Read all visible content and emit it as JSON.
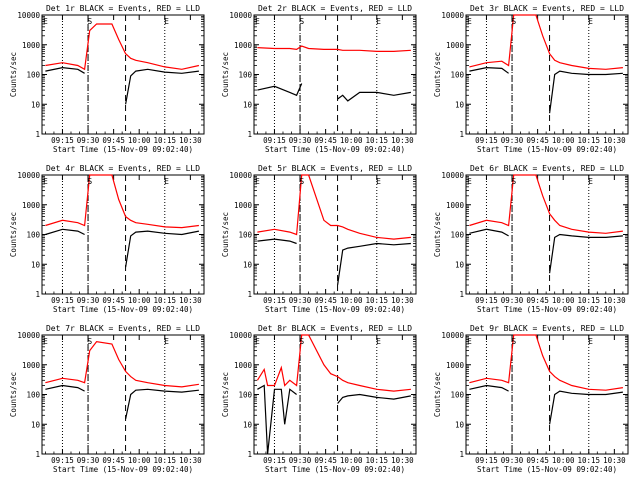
{
  "figure": {
    "x_tick_labels": [
      "09:15",
      "09:30",
      "09:45",
      "10:00",
      "10:15",
      "10:30"
    ],
    "y_tick_labels": [
      "1",
      "10",
      "100",
      "1000",
      "10000"
    ],
    "ylabel": "Counts/sec",
    "xlabel": "Start Time (15-Nov-09 09:02:40)",
    "event_colors": {
      "events": "#000000",
      "lld": "#ff0000"
    },
    "marker_labels": {
      "start": "S",
      "end": "E"
    }
  },
  "chart_data": [
    {
      "type": "line",
      "title": "Det 1r BLACK = Events, RED = LLD",
      "xlabel": "Start Time (15-Nov-09 09:02:40)",
      "ylabel": "Counts/sec",
      "ylim": [
        1,
        10000
      ],
      "y_scale": "log",
      "x": [
        "09:05",
        "09:15",
        "09:24",
        "09:28",
        "09:31",
        "09:35",
        "09:44",
        "09:48",
        "09:52",
        "09:55",
        "09:58",
        "10:05",
        "10:15",
        "10:25",
        "10:35"
      ],
      "dotted_lines": [
        "09:15",
        "09:30",
        "10:15"
      ],
      "dashed_lines": [
        "09:30",
        "09:52"
      ],
      "markers": [
        {
          "label": "E",
          "x": "09:05"
        },
        {
          "label": "S",
          "x": "09:31"
        },
        {
          "label": "E",
          "x": "10:16"
        }
      ],
      "series": [
        {
          "color": "#ff0000",
          "values": [
            200,
            250,
            200,
            150,
            3000,
            5000,
            5000,
            1500,
            500,
            350,
            300,
            250,
            180,
            150,
            200
          ]
        },
        {
          "color": "#000000",
          "values": [
            130,
            170,
            150,
            110,
            null,
            null,
            null,
            null,
            10,
            90,
            130,
            150,
            120,
            110,
            130
          ]
        }
      ]
    },
    {
      "type": "line",
      "title": "Det 2r BLACK = Events, RED = LLD",
      "xlabel": "Start Time (15-Nov-09 09:02:40)",
      "ylabel": "Counts/sec",
      "ylim": [
        1,
        10000
      ],
      "y_scale": "log",
      "x": [
        "09:05",
        "09:15",
        "09:24",
        "09:28",
        "09:31",
        "09:35",
        "09:44",
        "09:48",
        "09:52",
        "09:55",
        "09:58",
        "10:05",
        "10:15",
        "10:25",
        "10:35"
      ],
      "dotted_lines": [
        "09:15",
        "09:30",
        "10:15"
      ],
      "dashed_lines": [
        "09:30",
        "09:52"
      ],
      "markers": [
        {
          "label": "E",
          "x": "09:05"
        },
        {
          "label": "S",
          "x": "09:31"
        },
        {
          "label": "E",
          "x": "10:16"
        }
      ],
      "series": [
        {
          "color": "#ff0000",
          "values": [
            800,
            750,
            750,
            700,
            900,
            750,
            700,
            700,
            700,
            650,
            650,
            650,
            600,
            600,
            650
          ]
        },
        {
          "color": "#000000",
          "values": [
            30,
            40,
            25,
            20,
            50,
            null,
            null,
            null,
            15,
            20,
            13,
            25,
            25,
            20,
            25
          ]
        }
      ]
    },
    {
      "type": "line",
      "title": "Det 3r BLACK = Events, RED = LLD",
      "xlabel": "Start Time (15-Nov-09 09:02:40)",
      "ylabel": "Counts/sec",
      "ylim": [
        1,
        10000
      ],
      "y_scale": "log",
      "x": [
        "09:05",
        "09:15",
        "09:24",
        "09:28",
        "09:31",
        "09:35",
        "09:44",
        "09:48",
        "09:52",
        "09:55",
        "09:58",
        "10:05",
        "10:15",
        "10:25",
        "10:35"
      ],
      "dotted_lines": [
        "09:15",
        "09:30",
        "10:15"
      ],
      "dashed_lines": [
        "09:30",
        "09:52"
      ],
      "markers": [
        {
          "label": "E",
          "x": "09:05"
        },
        {
          "label": "S",
          "x": "09:31"
        },
        {
          "label": "E",
          "x": "10:16"
        }
      ],
      "series": [
        {
          "color": "#ff0000",
          "values": [
            180,
            250,
            280,
            200,
            10000,
            10000,
            10000,
            2000,
            500,
            300,
            250,
            200,
            160,
            150,
            170
          ]
        },
        {
          "color": "#000000",
          "values": [
            130,
            170,
            160,
            110,
            null,
            null,
            null,
            null,
            5,
            100,
            130,
            110,
            100,
            100,
            110
          ]
        }
      ]
    },
    {
      "type": "line",
      "title": "Det 4r BLACK = Events, RED = LLD",
      "xlabel": "Start Time (15-Nov-09 09:02:40)",
      "ylabel": "Counts/sec",
      "ylim": [
        1,
        10000
      ],
      "y_scale": "log",
      "x": [
        "09:05",
        "09:15",
        "09:24",
        "09:28",
        "09:31",
        "09:35",
        "09:44",
        "09:48",
        "09:52",
        "09:55",
        "09:58",
        "10:05",
        "10:15",
        "10:25",
        "10:35"
      ],
      "dotted_lines": [
        "09:15",
        "09:30",
        "10:15"
      ],
      "dashed_lines": [
        "09:30",
        "09:52"
      ],
      "markers": [
        {
          "label": "E",
          "x": "09:05"
        },
        {
          "label": "S",
          "x": "09:31"
        },
        {
          "label": "E",
          "x": "10:16"
        }
      ],
      "series": [
        {
          "color": "#ff0000",
          "values": [
            200,
            300,
            250,
            200,
            10000,
            10000,
            10000,
            1500,
            400,
            300,
            250,
            220,
            180,
            170,
            200
          ]
        },
        {
          "color": "#000000",
          "values": [
            100,
            150,
            130,
            100,
            null,
            null,
            null,
            null,
            8,
            90,
            120,
            130,
            110,
            100,
            130
          ]
        }
      ]
    },
    {
      "type": "line",
      "title": "Det 5r BLACK = Events, RED = LLD",
      "xlabel": "Start Time (15-Nov-09 09:02:40)",
      "ylabel": "Counts/sec",
      "ylim": [
        1,
        10000
      ],
      "y_scale": "log",
      "x": [
        "09:05",
        "09:15",
        "09:24",
        "09:28",
        "09:31",
        "09:35",
        "09:44",
        "09:48",
        "09:52",
        "09:55",
        "09:58",
        "10:05",
        "10:15",
        "10:25",
        "10:35"
      ],
      "dotted_lines": [
        "09:15",
        "09:30",
        "10:15"
      ],
      "dashed_lines": [
        "09:30",
        "09:52"
      ],
      "markers": [
        {
          "label": "E",
          "x": "09:05"
        },
        {
          "label": "S",
          "x": "09:31"
        },
        {
          "label": "E",
          "x": "10:16"
        }
      ],
      "series": [
        {
          "color": "#ff0000",
          "values": [
            120,
            150,
            120,
            100,
            10000,
            10000,
            300,
            200,
            200,
            180,
            150,
            110,
            80,
            70,
            80
          ]
        },
        {
          "color": "#000000",
          "values": [
            60,
            70,
            60,
            50,
            null,
            null,
            null,
            null,
            2,
            30,
            35,
            40,
            50,
            45,
            50
          ]
        }
      ]
    },
    {
      "type": "line",
      "title": "Det 6r BLACK = Events, RED = LLD",
      "xlabel": "Start Time (15-Nov-09 09:02:40)",
      "ylabel": "Counts/sec",
      "ylim": [
        1,
        10000
      ],
      "y_scale": "log",
      "x": [
        "09:05",
        "09:15",
        "09:24",
        "09:28",
        "09:31",
        "09:35",
        "09:44",
        "09:48",
        "09:52",
        "09:55",
        "09:58",
        "10:05",
        "10:15",
        "10:25",
        "10:35"
      ],
      "dotted_lines": [
        "09:15",
        "09:30",
        "10:15"
      ],
      "dashed_lines": [
        "09:30",
        "09:52"
      ],
      "markers": [
        {
          "label": "E",
          "x": "09:05"
        },
        {
          "label": "S",
          "x": "09:31"
        },
        {
          "label": "E",
          "x": "10:16"
        }
      ],
      "series": [
        {
          "color": "#ff0000",
          "values": [
            200,
            300,
            250,
            200,
            10000,
            10000,
            10000,
            2000,
            500,
            300,
            200,
            150,
            120,
            110,
            130
          ]
        },
        {
          "color": "#000000",
          "values": [
            110,
            150,
            120,
            90,
            null,
            null,
            null,
            null,
            5,
            80,
            100,
            90,
            80,
            80,
            90
          ]
        }
      ]
    },
    {
      "type": "line",
      "title": "Det 7r BLACK = Events, RED = LLD",
      "xlabel": "Start Time (15-Nov-09 09:02:40)",
      "ylabel": "Counts/sec",
      "ylim": [
        1,
        10000
      ],
      "y_scale": "log",
      "x": [
        "09:05",
        "09:15",
        "09:24",
        "09:28",
        "09:31",
        "09:35",
        "09:44",
        "09:48",
        "09:52",
        "09:55",
        "09:58",
        "10:05",
        "10:15",
        "10:25",
        "10:35"
      ],
      "dotted_lines": [
        "09:15",
        "09:30",
        "10:15"
      ],
      "dashed_lines": [
        "09:30",
        "09:52"
      ],
      "markers": [
        {
          "label": "E",
          "x": "09:05"
        },
        {
          "label": "S",
          "x": "09:31"
        },
        {
          "label": "E",
          "x": "10:16"
        }
      ],
      "series": [
        {
          "color": "#ff0000",
          "values": [
            250,
            350,
            300,
            250,
            3000,
            6000,
            5000,
            1500,
            600,
            400,
            300,
            250,
            200,
            180,
            220
          ]
        },
        {
          "color": "#000000",
          "values": [
            150,
            200,
            170,
            130,
            null,
            null,
            null,
            null,
            15,
            100,
            140,
            150,
            130,
            120,
            140
          ]
        }
      ]
    },
    {
      "type": "line",
      "title": "Det 8r BLACK = Events, RED = LLD",
      "xlabel": "Start Time (15-Nov-09 09:02:40)",
      "ylabel": "Counts/sec",
      "ylim": [
        1,
        10000
      ],
      "y_scale": "log",
      "x": [
        "09:05",
        "09:09",
        "09:11",
        "09:15",
        "09:19",
        "09:21",
        "09:24",
        "09:28",
        "09:31",
        "09:35",
        "09:44",
        "09:48",
        "09:52",
        "09:55",
        "09:58",
        "10:05",
        "10:15",
        "10:25",
        "10:35"
      ],
      "dotted_lines": [
        "09:15",
        "09:30",
        "10:15"
      ],
      "dashed_lines": [
        "09:30",
        "09:52"
      ],
      "markers": [
        {
          "label": "E",
          "x": "09:05"
        },
        {
          "label": "S",
          "x": "09:31"
        },
        {
          "label": "E",
          "x": "10:16"
        }
      ],
      "series": [
        {
          "color": "#ff0000",
          "values": [
            300,
            700,
            200,
            200,
            800,
            200,
            300,
            200,
            10000,
            10000,
            1000,
            500,
            400,
            300,
            250,
            200,
            150,
            130,
            150
          ]
        },
        {
          "color": "#000000",
          "values": [
            150,
            200,
            1,
            150,
            150,
            10,
            150,
            100,
            null,
            null,
            null,
            null,
            50,
            80,
            90,
            100,
            80,
            70,
            90
          ]
        }
      ]
    },
    {
      "type": "line",
      "title": "Det 9r BLACK = Events, RED = LLD",
      "xlabel": "Start Time (15-Nov-09 09:02:40)",
      "ylabel": "Counts/sec",
      "ylim": [
        1,
        10000
      ],
      "y_scale": "log",
      "x": [
        "09:05",
        "09:15",
        "09:24",
        "09:28",
        "09:31",
        "09:35",
        "09:44",
        "09:48",
        "09:52",
        "09:55",
        "09:58",
        "10:05",
        "10:15",
        "10:25",
        "10:35"
      ],
      "dotted_lines": [
        "09:15",
        "09:30",
        "10:15"
      ],
      "dashed_lines": [
        "09:30",
        "09:52"
      ],
      "markers": [
        {
          "label": "E",
          "x": "09:05"
        },
        {
          "label": "S",
          "x": "09:31"
        },
        {
          "label": "E",
          "x": "10:16"
        }
      ],
      "series": [
        {
          "color": "#ff0000",
          "values": [
            250,
            350,
            300,
            250,
            10000,
            10000,
            10000,
            2000,
            600,
            400,
            300,
            200,
            150,
            140,
            170
          ]
        },
        {
          "color": "#000000",
          "values": [
            150,
            200,
            170,
            130,
            null,
            null,
            null,
            null,
            10,
            100,
            130,
            110,
            100,
            100,
            120
          ]
        }
      ]
    }
  ]
}
